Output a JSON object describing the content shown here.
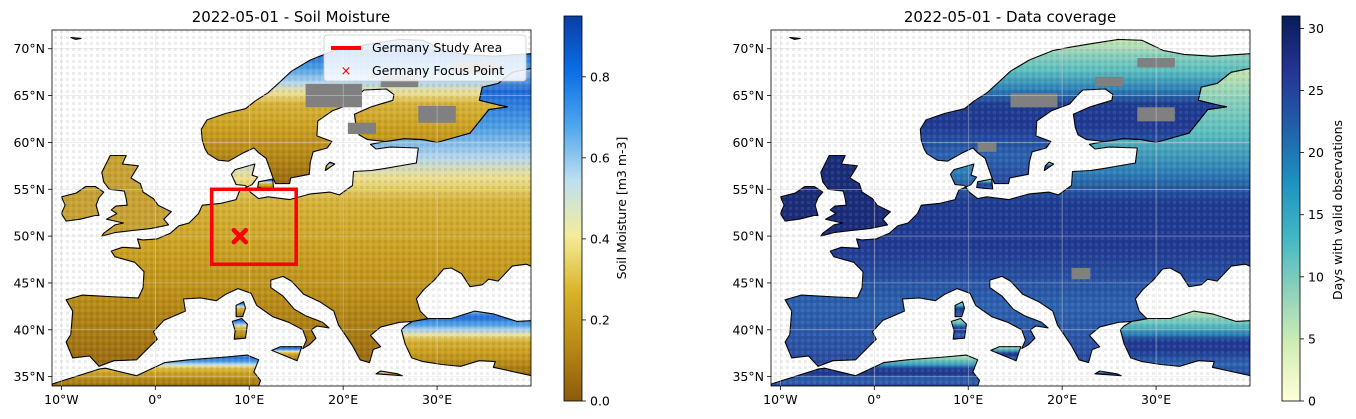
{
  "panels": [
    {
      "title": "2022-05-01 - Soil Moisture",
      "lon_ticks": [
        "10°W",
        "0°",
        "10°E",
        "20°E",
        "30°E"
      ],
      "lat_ticks": [
        "70°N",
        "65°N",
        "60°N",
        "55°N",
        "50°N",
        "45°N",
        "40°N",
        "35°N"
      ],
      "colorbar": {
        "label": "Soil Moisture [m3 m-3]",
        "ticks": [
          "0.0",
          "0.2",
          "0.4",
          "0.6",
          "0.8"
        ],
        "tick_values": [
          0.0,
          0.2,
          0.4,
          0.6,
          0.8
        ],
        "range": [
          0.0,
          0.95
        ],
        "colormap": [
          "#8c5a0a",
          "#b88a15",
          "#d9b42a",
          "#f4ec9a",
          "#bfe0f0",
          "#4fa6ec",
          "#0a6ee6",
          "#0a3ea6"
        ]
      },
      "legend": {
        "placement": "top-right",
        "items": [
          {
            "label": "Germany Study Area",
            "symbol": "line",
            "color": "#ff0000"
          },
          {
            "label": "Germany Focus Point",
            "symbol": "x",
            "color": "#ff0000"
          }
        ]
      },
      "study_area": {
        "lon": [
          6,
          15
        ],
        "lat": [
          47,
          55
        ],
        "color": "#ff0000"
      },
      "focus_point": {
        "lon": 9,
        "lat": 50,
        "color": "#ff0000"
      }
    },
    {
      "title": "2022-05-01 - Data coverage",
      "lon_ticks": [
        "10°W",
        "0°",
        "10°E",
        "20°E",
        "30°E"
      ],
      "lat_ticks": [
        "70°N",
        "65°N",
        "60°N",
        "55°N",
        "50°N",
        "45°N",
        "40°N",
        "35°N"
      ],
      "colorbar": {
        "label": "Days with valid observations",
        "ticks": [
          "0",
          "5",
          "10",
          "15",
          "20",
          "25",
          "30"
        ],
        "tick_values": [
          0,
          5,
          10,
          15,
          20,
          25,
          30
        ],
        "range": [
          0,
          31
        ],
        "colormap": [
          "#ffffd9",
          "#d3eeb4",
          "#8dd1bb",
          "#41b6c4",
          "#1d91c0",
          "#225ea8",
          "#253494",
          "#081d58"
        ]
      }
    }
  ],
  "map_extent": {
    "lon": [
      -11,
      40
    ],
    "lat": [
      34,
      72
    ]
  },
  "colors": {
    "missing": "#808080",
    "coastline": "#000000",
    "grid": "#e6e6e6"
  }
}
